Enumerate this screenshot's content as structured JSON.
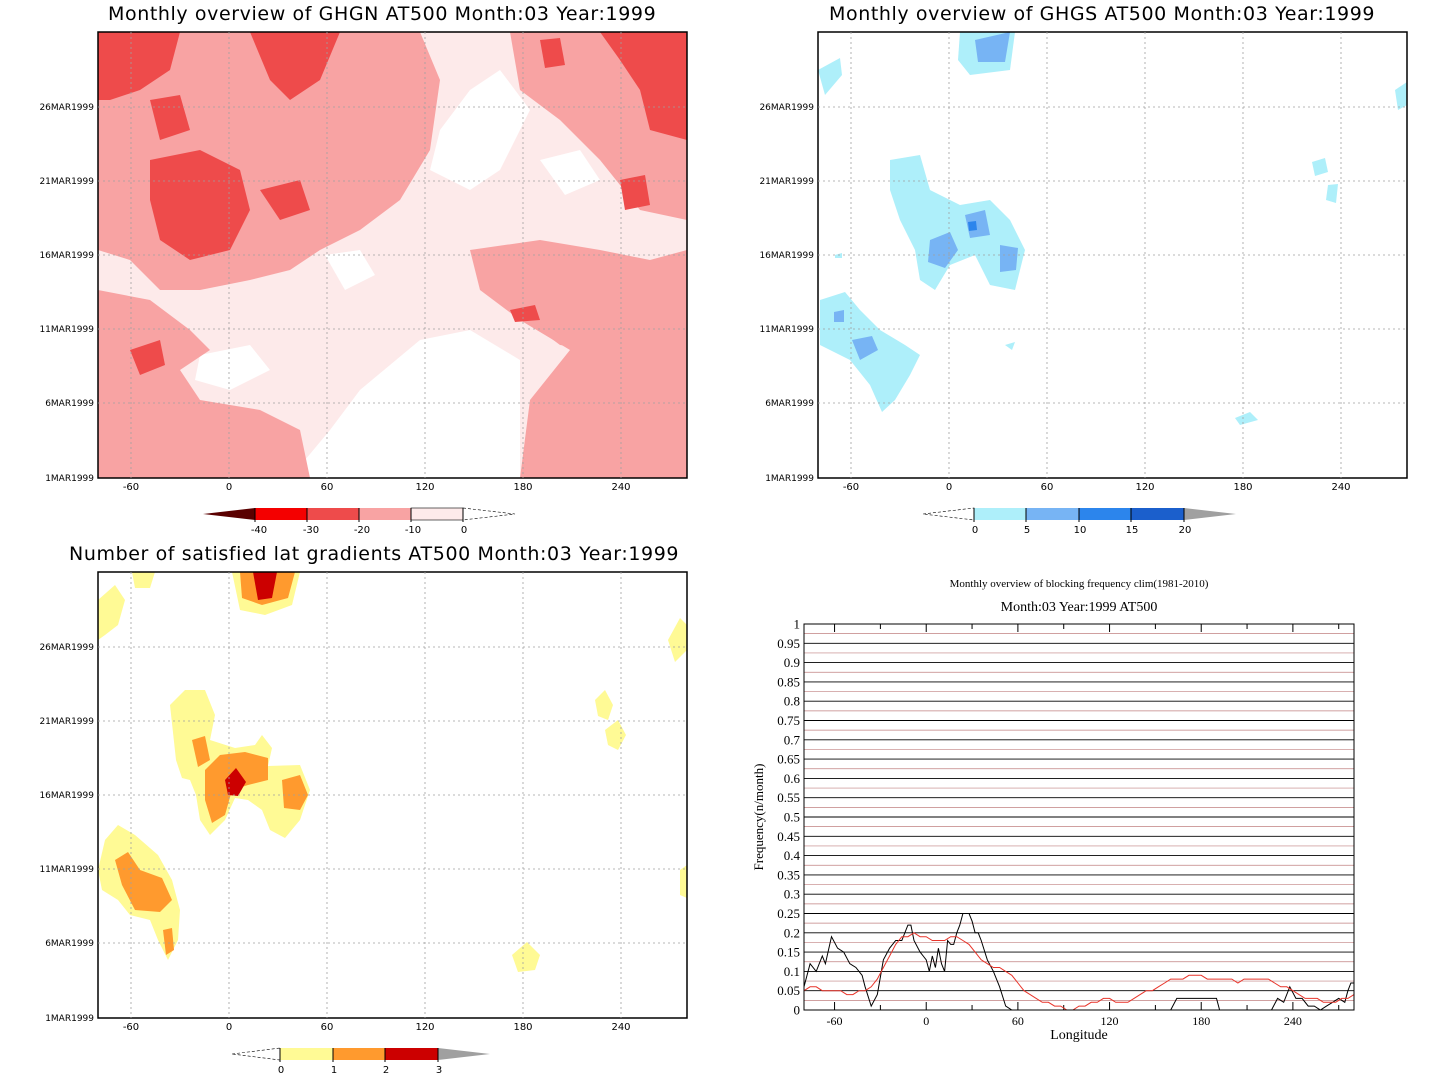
{
  "panels": {
    "ghgn": {
      "title": "Monthly overview of GHGN AT500 Month:03 Year:1999",
      "x_ticks": [
        "-60",
        "0",
        "60",
        "120",
        "180",
        "240"
      ],
      "y_ticks": [
        "1MAR1999",
        "6MAR1999",
        "11MAR1999",
        "16MAR1999",
        "21MAR1999",
        "26MAR1999"
      ],
      "colorbar": {
        "labels": [
          "-40",
          "-30",
          "-20",
          "-10",
          "0"
        ],
        "colors": [
          "#5a0000",
          "#f40000",
          "#ee4b4b",
          "#f8a3a3",
          "#fdeaea"
        ]
      }
    },
    "ghgs": {
      "title": "Monthly overview of GHGS AT500 Month:03 Year:1999",
      "x_ticks": [
        "-60",
        "0",
        "60",
        "120",
        "180",
        "240"
      ],
      "y_ticks": [
        "1MAR1999",
        "6MAR1999",
        "11MAR1999",
        "16MAR1999",
        "21MAR1999",
        "26MAR1999"
      ],
      "colorbar": {
        "labels": [
          "0",
          "5",
          "10",
          "15",
          "20"
        ],
        "colors": [
          "#aeeffa",
          "#77b4f4",
          "#2c85ec",
          "#1b5fcc",
          "#a0a0a0"
        ]
      }
    },
    "gradients": {
      "title": "Number of satisfied lat gradients AT500 Month:03 Year:1999",
      "x_ticks": [
        "-60",
        "0",
        "60",
        "120",
        "180",
        "240"
      ],
      "y_ticks": [
        "1MAR1999",
        "6MAR1999",
        "11MAR1999",
        "16MAR1999",
        "21MAR1999",
        "26MAR1999"
      ],
      "colorbar": {
        "labels": [
          "0",
          "1",
          "2",
          "3"
        ],
        "colors": [
          "#fffa95",
          "#ff9a2e",
          "#cc0000",
          "#a0a0a0"
        ]
      }
    },
    "blocking": {
      "title": "Monthly overview of blocking frequency clim(1981-2010)",
      "subtitle": "Month:03 Year:1999  AT500"
    }
  },
  "chart_data": [
    {
      "type": "heatmap",
      "title": "Monthly overview of GHGN AT500 Month:03 Year:1999",
      "x_ticks": [
        -60,
        0,
        60,
        120,
        180,
        240
      ],
      "y_ticks": [
        "1MAR1999",
        "6MAR1999",
        "11MAR1999",
        "16MAR1999",
        "21MAR1999",
        "26MAR1999"
      ],
      "xlim": [
        -80,
        280
      ],
      "color_levels": [
        -40,
        -30,
        -20,
        -10,
        0
      ]
    },
    {
      "type": "heatmap",
      "title": "Monthly overview of GHGS AT500 Month:03 Year:1999",
      "x_ticks": [
        -60,
        0,
        60,
        120,
        180,
        240
      ],
      "y_ticks": [
        "1MAR1999",
        "6MAR1999",
        "11MAR1999",
        "16MAR1999",
        "21MAR1999",
        "26MAR1999"
      ],
      "xlim": [
        -80,
        280
      ],
      "color_levels": [
        0,
        5,
        10,
        15,
        20
      ]
    },
    {
      "type": "heatmap",
      "title": "Number of satisfied lat gradients AT500 Month:03 Year:1999",
      "x_ticks": [
        -60,
        0,
        60,
        120,
        180,
        240
      ],
      "y_ticks": [
        "1MAR1999",
        "6MAR1999",
        "11MAR1999",
        "16MAR1999",
        "21MAR1999",
        "26MAR1999"
      ],
      "xlim": [
        -80,
        280
      ],
      "color_levels": [
        0,
        1,
        2,
        3
      ]
    },
    {
      "type": "line",
      "title": "Monthly overview of blocking frequency clim(1981-2010)",
      "subtitle": "Month:03 Year:1999  AT500",
      "xlabel": "Longitude",
      "ylabel": "Frequency(n/month)",
      "xlim": [
        -80,
        280
      ],
      "ylim": [
        0,
        1
      ],
      "x_ticks": [
        -60,
        0,
        60,
        120,
        180,
        240
      ],
      "y_ticks": [
        "0",
        "0.05",
        "0.1",
        "0.15",
        "0.2",
        "0.25",
        "0.3",
        "0.35",
        "0.4",
        "0.45",
        "0.5",
        "0.55",
        "0.6",
        "0.65",
        "0.7",
        "0.75",
        "0.8",
        "0.85",
        "0.9",
        "0.95",
        "1"
      ],
      "grid": true,
      "series": [
        {
          "color": "#000000",
          "x": [
            -80,
            -76,
            -72,
            -68,
            -66,
            -62,
            -58,
            -54,
            -50,
            -46,
            -42,
            -40,
            -36,
            -32,
            -28,
            -24,
            -20,
            -16,
            -12,
            -10,
            -8,
            -4,
            -2,
            0,
            2,
            4,
            6,
            8,
            10,
            12,
            14,
            16,
            18,
            20,
            22,
            24,
            26,
            28,
            30,
            32,
            34,
            36,
            40,
            44,
            48,
            52,
            56,
            60,
            160,
            164,
            168,
            172,
            176,
            182,
            186,
            190,
            192,
            196,
            200,
            226,
            230,
            234,
            238,
            242,
            246,
            250,
            254,
            258,
            262,
            266,
            270,
            274,
            276,
            278,
            280
          ],
          "y": [
            0.06,
            0.12,
            0.1,
            0.14,
            0.12,
            0.19,
            0.16,
            0.15,
            0.12,
            0.11,
            0.09,
            0.06,
            0.01,
            0.04,
            0.13,
            0.16,
            0.18,
            0.18,
            0.22,
            0.22,
            0.18,
            0.15,
            0.14,
            0.13,
            0.1,
            0.14,
            0.11,
            0.16,
            0.12,
            0.1,
            0.18,
            0.17,
            0.17,
            0.2,
            0.22,
            0.25,
            0.25,
            0.25,
            0.23,
            0.2,
            0.2,
            0.18,
            0.13,
            0.1,
            0.06,
            0.01,
            0.0,
            0.0,
            0.0,
            0.03,
            0.03,
            0.03,
            0.03,
            0.03,
            0.03,
            0.03,
            0.0,
            0.0,
            0.0,
            0.0,
            0.03,
            0.02,
            0.06,
            0.03,
            0.03,
            0.01,
            0.01,
            0.0,
            0.01,
            0.02,
            0.03,
            0.02,
            0.05,
            0.07,
            0.07
          ]
        },
        {
          "color": "#e8342a",
          "x": [
            -80,
            -76,
            -72,
            -68,
            -64,
            -60,
            -56,
            -52,
            -48,
            -44,
            -40,
            -36,
            -32,
            -28,
            -24,
            -20,
            -16,
            -12,
            -8,
            -4,
            0,
            4,
            8,
            12,
            16,
            20,
            24,
            28,
            32,
            36,
            40,
            44,
            48,
            52,
            56,
            60,
            64,
            68,
            72,
            76,
            80,
            84,
            88,
            92,
            96,
            100,
            104,
            108,
            112,
            116,
            120,
            124,
            128,
            132,
            136,
            140,
            144,
            148,
            152,
            156,
            160,
            164,
            168,
            172,
            176,
            180,
            184,
            188,
            192,
            196,
            200,
            204,
            208,
            212,
            216,
            220,
            224,
            228,
            232,
            236,
            240,
            244,
            248,
            252,
            256,
            260,
            264,
            268,
            272,
            276,
            280
          ],
          "y": [
            0.05,
            0.06,
            0.06,
            0.05,
            0.05,
            0.05,
            0.05,
            0.04,
            0.04,
            0.05,
            0.05,
            0.06,
            0.08,
            0.11,
            0.14,
            0.17,
            0.19,
            0.19,
            0.2,
            0.19,
            0.19,
            0.18,
            0.18,
            0.18,
            0.19,
            0.19,
            0.18,
            0.17,
            0.15,
            0.13,
            0.12,
            0.11,
            0.11,
            0.1,
            0.09,
            0.07,
            0.05,
            0.04,
            0.03,
            0.02,
            0.02,
            0.01,
            0.01,
            0.0,
            0.0,
            0.01,
            0.01,
            0.02,
            0.02,
            0.03,
            0.03,
            0.02,
            0.02,
            0.02,
            0.03,
            0.04,
            0.05,
            0.05,
            0.06,
            0.07,
            0.08,
            0.08,
            0.08,
            0.09,
            0.09,
            0.09,
            0.08,
            0.08,
            0.08,
            0.08,
            0.08,
            0.07,
            0.08,
            0.08,
            0.08,
            0.08,
            0.08,
            0.07,
            0.06,
            0.06,
            0.05,
            0.04,
            0.03,
            0.03,
            0.03,
            0.02,
            0.02,
            0.02,
            0.03,
            0.03,
            0.04
          ]
        }
      ]
    }
  ]
}
